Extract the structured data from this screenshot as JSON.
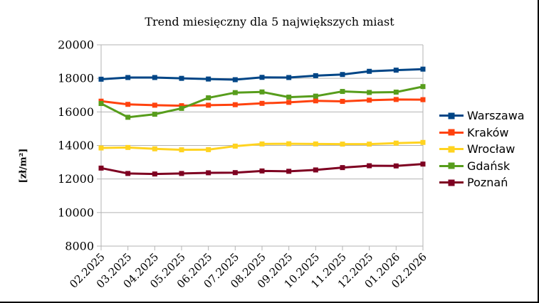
{
  "chart_data": {
    "type": "line",
    "title": "Trend miesięczny dla 5 największych miast",
    "ylabel": "[zł/m²]",
    "xlabel": "",
    "ylim": [
      8000,
      20000
    ],
    "ytick_step": 2000,
    "grid": true,
    "legend_position": "right",
    "marker": "square",
    "categories": [
      "02.2025",
      "03.2025",
      "04.2025",
      "05.2025",
      "06.2025",
      "07.2025",
      "08.2025",
      "09.2025",
      "10.2025",
      "11.2025",
      "12.2025",
      "01.2026",
      "02.2026"
    ],
    "series": [
      {
        "name": "Warszawa",
        "color": "#004586",
        "values": [
          17950,
          18050,
          18050,
          18000,
          17960,
          17920,
          18060,
          18050,
          18160,
          18230,
          18420,
          18490,
          18550
        ]
      },
      {
        "name": "Kraków",
        "color": "#FF420E",
        "values": [
          16640,
          16450,
          16400,
          16370,
          16400,
          16430,
          16510,
          16570,
          16660,
          16630,
          16700,
          16740,
          16730
        ]
      },
      {
        "name": "Wrocław",
        "color": "#FFD320",
        "values": [
          13850,
          13880,
          13800,
          13740,
          13750,
          13960,
          14090,
          14100,
          14090,
          14080,
          14080,
          14140,
          14180
        ]
      },
      {
        "name": "Gdańsk",
        "color": "#579D1C",
        "values": [
          16500,
          15680,
          15860,
          16210,
          16840,
          17150,
          17190,
          16880,
          16940,
          17220,
          17160,
          17180,
          17510
        ]
      },
      {
        "name": "Poznań",
        "color": "#7E0021",
        "values": [
          12650,
          12330,
          12300,
          12330,
          12370,
          12380,
          12480,
          12460,
          12540,
          12680,
          12790,
          12780,
          12890
        ]
      }
    ]
  },
  "colors": {
    "grid": "#b3b3b3",
    "axis": "#b3b3b3",
    "text": "#000000",
    "background": "#ffffff",
    "frame": "#000000"
  }
}
